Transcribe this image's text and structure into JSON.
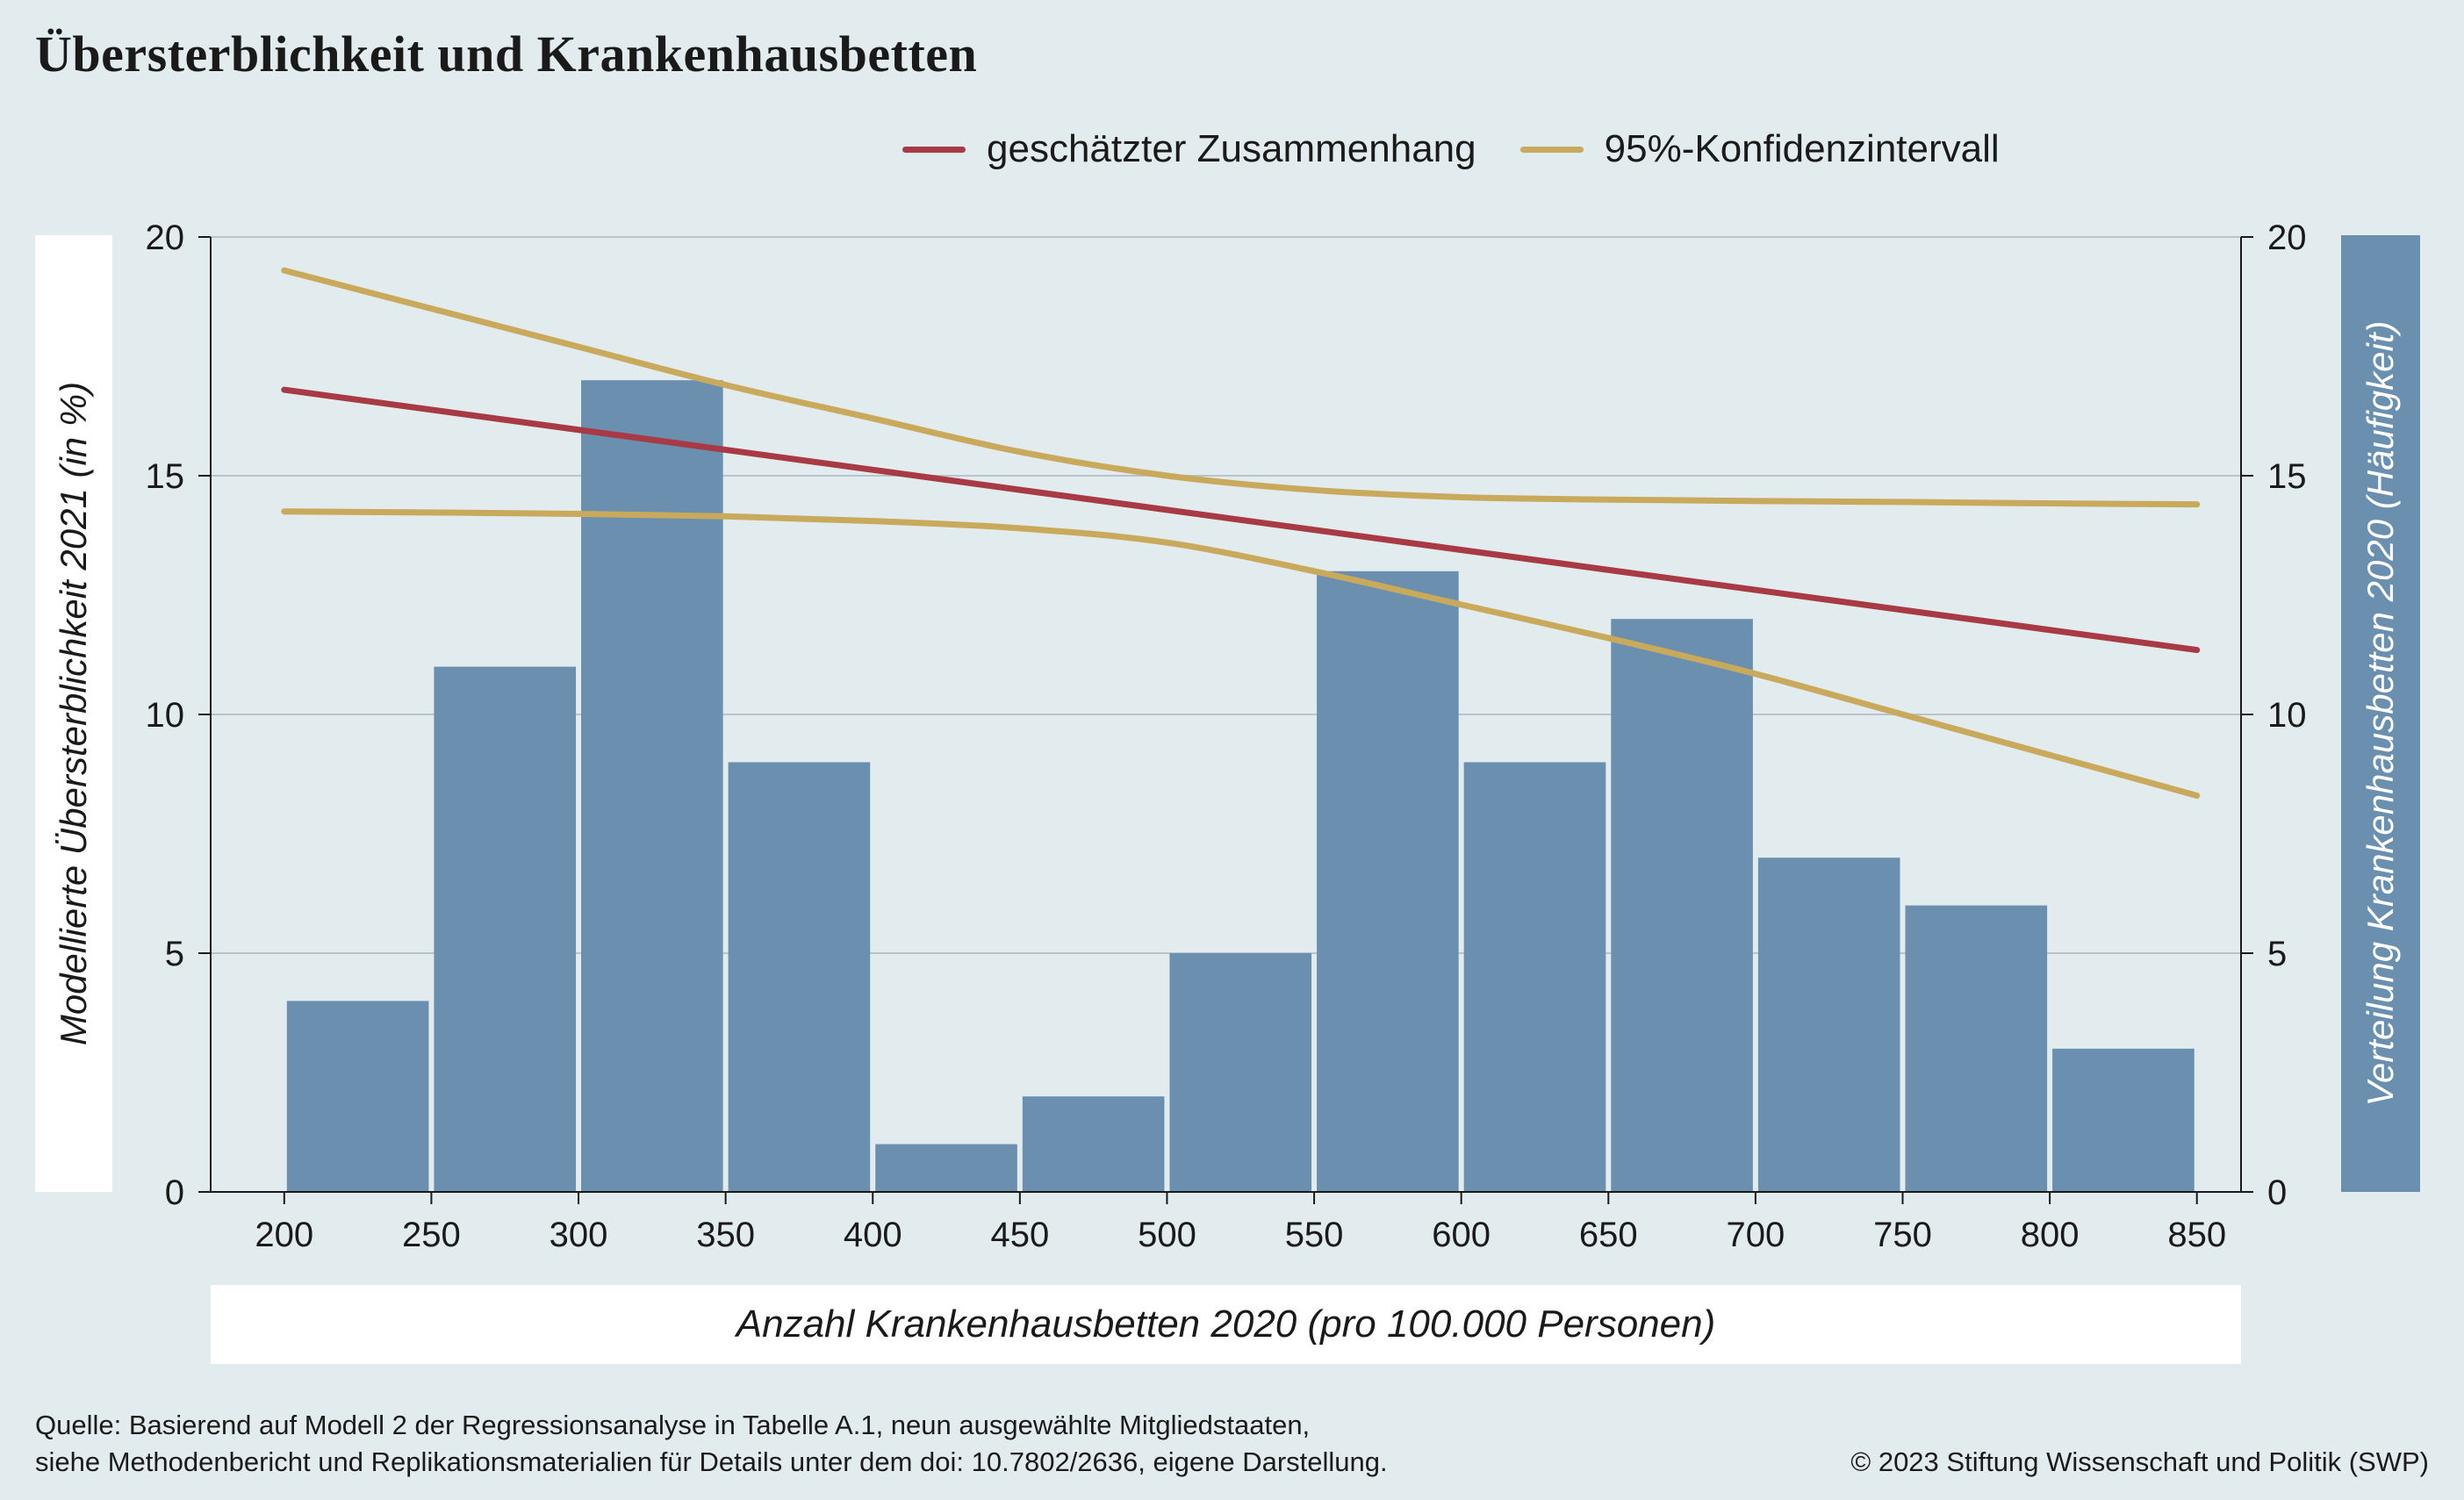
{
  "title": "Übersterblichkeit und Krankenhausbetten",
  "legend": [
    {
      "label": "geschätzter Zusammenhang",
      "color": "#a83a46"
    },
    {
      "label": "95%-Konfidenzintervall",
      "color": "#c9a95c"
    }
  ],
  "ylabel_left": "Modellierte Übersterblichkeit 2021 (in %)",
  "ylabel_right": "Verteilung Krankenhausbetten 2020 (Häufigkeit)",
  "xlabel": "Anzahl Krankenhausbetten 2020 (pro 100.000 Personen)",
  "source_lines": [
    "Quelle: Basierend auf Modell 2 der Regressionsanalyse in Tabelle A.1, neun ausgewählte Mitgliedstaaten,",
    "siehe Methodenbericht und Replikationsmaterialien für Details unter dem doi: 10.7802/2636, eigene Darstellung."
  ],
  "copyright": "© 2023 Stiftung Wissenschaft und Politik (SWP)",
  "colors": {
    "background": "#e2ebee",
    "bars": "#6b8fae",
    "estimate": "#a83a46",
    "ci": "#c9a95c",
    "grid": "#b9c4ca"
  },
  "chart_data": {
    "type": "bar",
    "xlim": [
      175,
      865
    ],
    "ylim": [
      0,
      20
    ],
    "xticks": [
      "200",
      "250",
      "300",
      "350",
      "400",
      "450",
      "500",
      "550",
      "600",
      "650",
      "700",
      "750",
      "800",
      "850"
    ],
    "yticks_left": [
      "0",
      "5",
      "10",
      "15",
      "20"
    ],
    "yticks_right": [
      "0",
      "5",
      "10",
      "15",
      "20"
    ],
    "grid": true,
    "legend_position": "top",
    "histogram": {
      "bin_width": 50,
      "bins": [
        {
          "start": 200,
          "count": 4
        },
        {
          "start": 250,
          "count": 11
        },
        {
          "start": 300,
          "count": 17
        },
        {
          "start": 350,
          "count": 9
        },
        {
          "start": 400,
          "count": 1
        },
        {
          "start": 450,
          "count": 2
        },
        {
          "start": 500,
          "count": 5
        },
        {
          "start": 550,
          "count": 13
        },
        {
          "start": 600,
          "count": 9
        },
        {
          "start": 650,
          "count": 12
        },
        {
          "start": 700,
          "count": 7
        },
        {
          "start": 750,
          "count": 6
        },
        {
          "start": 800,
          "count": 3
        }
      ]
    },
    "series": [
      {
        "name": "geschätzter Zusammenhang",
        "type": "line",
        "x": [
          200,
          850
        ],
        "y": [
          16.8,
          11.35
        ]
      },
      {
        "name": "95%-Konfidenzintervall",
        "type": "line",
        "role": "upper",
        "x": [
          200,
          250,
          300,
          350,
          400,
          450,
          500,
          550,
          600,
          650,
          700,
          750,
          800,
          850
        ],
        "y": [
          19.3,
          18.5,
          17.7,
          16.9,
          16.2,
          15.5,
          15.0,
          14.7,
          14.55,
          14.5,
          14.47,
          14.45,
          14.42,
          14.4
        ]
      },
      {
        "name": "95%-Konfidenzintervall",
        "type": "line",
        "role": "lower",
        "x": [
          200,
          250,
          300,
          350,
          400,
          450,
          500,
          550,
          600,
          650,
          700,
          750,
          800,
          850
        ],
        "y": [
          14.25,
          14.23,
          14.2,
          14.15,
          14.05,
          13.9,
          13.6,
          13.0,
          12.3,
          11.6,
          10.85,
          10.0,
          9.15,
          8.3
        ]
      }
    ]
  }
}
